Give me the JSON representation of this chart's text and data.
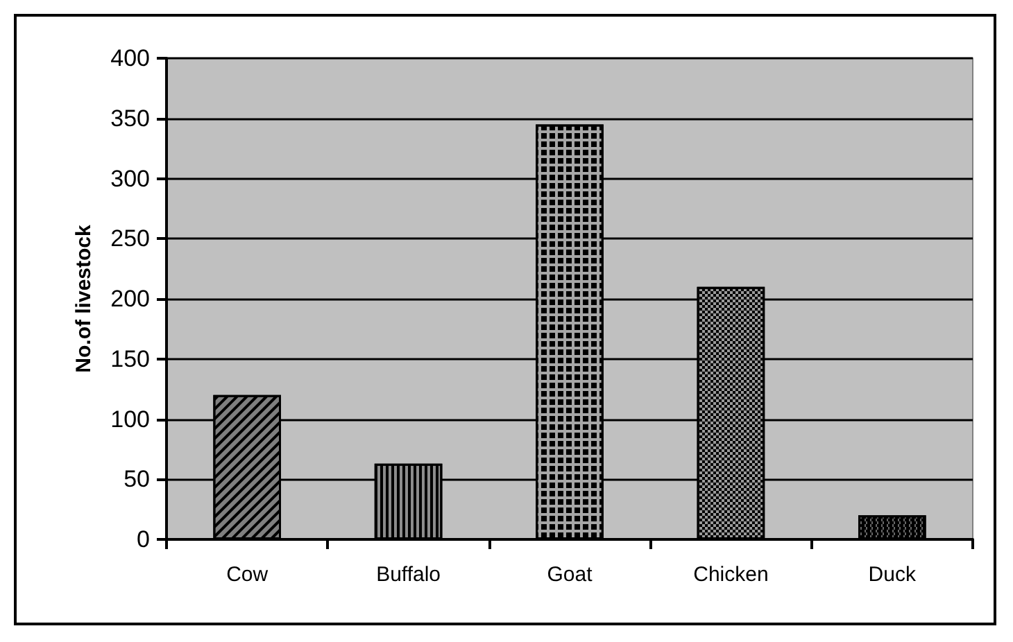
{
  "chart_data": {
    "type": "bar",
    "ylabel": "No.of livestock",
    "categories": [
      "Cow",
      "Buffalo",
      "Goat",
      "Chicken",
      "Duck"
    ],
    "values": [
      120,
      63,
      345,
      210,
      20
    ],
    "colors": [
      "#7f7f7f",
      "#8c8c8c",
      "#a6a6a6",
      "#999999",
      "#666666"
    ],
    "ylim": [
      0,
      400
    ],
    "yticks": [
      0,
      50,
      100,
      150,
      200,
      250,
      300,
      350,
      400
    ],
    "grid": "y"
  }
}
